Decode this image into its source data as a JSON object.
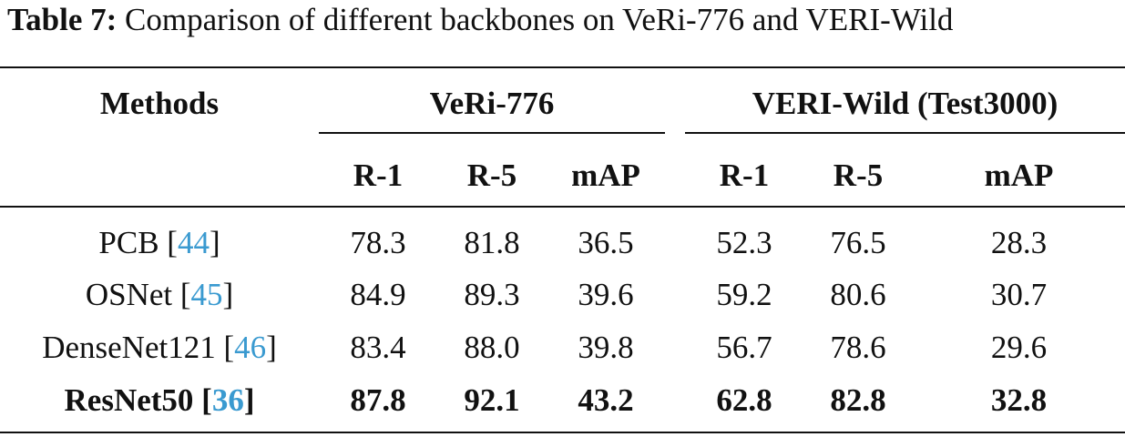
{
  "caption": {
    "label": "Table 7:",
    "text": "Comparison of different backbones on VeRi-776 and VERI-Wild"
  },
  "header": {
    "methods": "Methods",
    "groups": [
      "VeRi-776",
      "VERI-Wild (Test3000)"
    ],
    "metrics": [
      "R-1",
      "R-5",
      "mAP",
      "R-1",
      "R-5",
      "mAP"
    ]
  },
  "rows": [
    {
      "method": "PCB",
      "ref": "44",
      "values": [
        "78.3",
        "81.8",
        "36.5",
        "52.3",
        "76.5",
        "28.3"
      ],
      "bold": false
    },
    {
      "method": "OSNet",
      "ref": "45",
      "values": [
        "84.9",
        "89.3",
        "39.6",
        "59.2",
        "80.6",
        "30.7"
      ],
      "bold": false
    },
    {
      "method": "DenseNet121",
      "ref": "46",
      "values": [
        "83.4",
        "88.0",
        "39.8",
        "56.7",
        "78.6",
        "29.6"
      ],
      "bold": false
    },
    {
      "method": "ResNet50",
      "ref": "36",
      "values": [
        "87.8",
        "92.1",
        "43.2",
        "62.8",
        "82.8",
        "32.8"
      ],
      "bold": true
    }
  ],
  "colors": {
    "text": "#111111",
    "reference_link": "#3a9ad0"
  }
}
